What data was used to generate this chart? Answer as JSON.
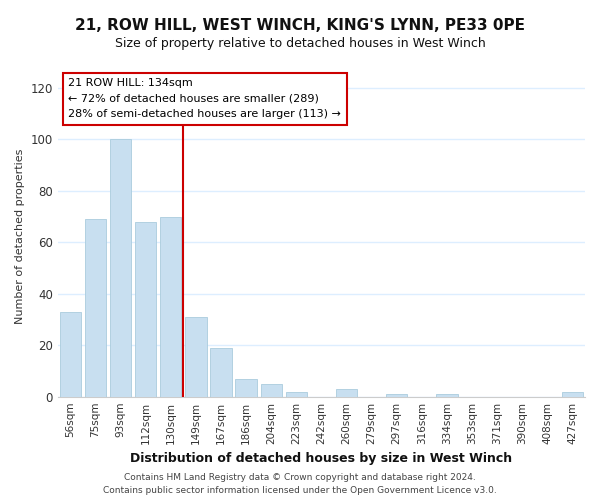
{
  "title": "21, ROW HILL, WEST WINCH, KING'S LYNN, PE33 0PE",
  "subtitle": "Size of property relative to detached houses in West Winch",
  "xlabel": "Distribution of detached houses by size in West Winch",
  "ylabel": "Number of detached properties",
  "bar_color": "#c8dff0",
  "bar_edge_color": "#aaccdd",
  "categories": [
    "56sqm",
    "75sqm",
    "93sqm",
    "112sqm",
    "130sqm",
    "149sqm",
    "167sqm",
    "186sqm",
    "204sqm",
    "223sqm",
    "242sqm",
    "260sqm",
    "279sqm",
    "297sqm",
    "316sqm",
    "334sqm",
    "353sqm",
    "371sqm",
    "390sqm",
    "408sqm",
    "427sqm"
  ],
  "values": [
    33,
    69,
    100,
    68,
    70,
    31,
    19,
    7,
    5,
    2,
    0,
    3,
    0,
    1,
    0,
    1,
    0,
    0,
    0,
    0,
    2
  ],
  "ylim": [
    0,
    125
  ],
  "yticks": [
    0,
    20,
    40,
    60,
    80,
    100,
    120
  ],
  "property_line_idx": 4,
  "property_line_color": "#cc0000",
  "annotation_box_color": "#ffffff",
  "annotation_box_edge_color": "#cc0000",
  "annotation_line1": "21 ROW HILL: 134sqm",
  "annotation_line2": "← 72% of detached houses are smaller (289)",
  "annotation_line3": "28% of semi-detached houses are larger (113) →",
  "footer_line1": "Contains HM Land Registry data © Crown copyright and database right 2024.",
  "footer_line2": "Contains public sector information licensed under the Open Government Licence v3.0.",
  "background_color": "#ffffff",
  "grid_color": "#ddeeff",
  "title_fontsize": 11,
  "subtitle_fontsize": 9
}
